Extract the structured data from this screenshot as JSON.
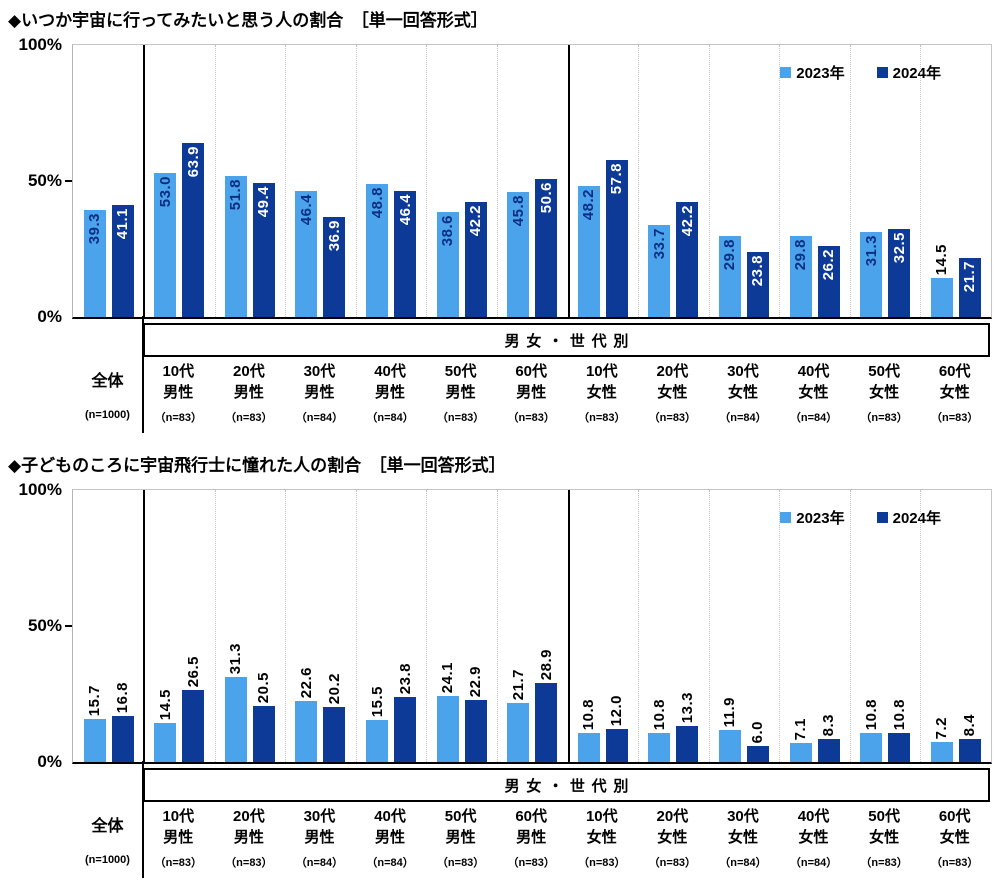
{
  "colors": {
    "bar_2023": "#4BA3EC",
    "bar_2024": "#0D3A96",
    "label_on_light_bar": "#0A2F82",
    "label_on_dark_bar": "#FFFFFF",
    "label_outside": "#000000"
  },
  "chart_data": [
    {
      "type": "bar",
      "title": "◆いつか宇宙に行ってみたいと思う人の割合　［単一回答形式］",
      "y_ticks": [
        "100%",
        "50%",
        "0%"
      ],
      "ylim": [
        0,
        100
      ],
      "legend": [
        "2023年",
        "2024年"
      ],
      "legend_position": "top-right",
      "grid": "vertical-dotted-group-separators",
      "group_box_label": "男女・世代別",
      "value_label_placement": "inside-end",
      "categories": [
        "全体",
        "10代\n男性",
        "20代\n男性",
        "30代\n男性",
        "40代\n男性",
        "50代\n男性",
        "60代\n男性",
        "10代\n女性",
        "20代\n女性",
        "30代\n女性",
        "40代\n女性",
        "50代\n女性",
        "60代\n女性"
      ],
      "n_labels": [
        "(n=1000)",
        "（n=83）",
        "（n=83）",
        "（n=84）",
        "（n=84）",
        "（n=83）",
        "（n=83）",
        "（n=83）",
        "（n=83）",
        "（n=84）",
        "（n=84）",
        "（n=83）",
        "（n=83）"
      ],
      "series": [
        {
          "name": "2023年",
          "values": [
            39.3,
            53.0,
            51.8,
            46.4,
            48.8,
            38.6,
            45.8,
            48.2,
            33.7,
            29.8,
            29.8,
            31.3,
            14.5
          ]
        },
        {
          "name": "2024年",
          "values": [
            41.1,
            63.9,
            49.4,
            36.9,
            46.4,
            42.2,
            50.6,
            57.8,
            42.2,
            23.8,
            26.2,
            32.5,
            21.7
          ]
        }
      ]
    },
    {
      "type": "bar",
      "title": "◆子どものころに宇宙飛行士に憧れた人の割合　［単一回答形式］",
      "y_ticks": [
        "100%",
        "50%",
        "0%"
      ],
      "ylim": [
        0,
        100
      ],
      "legend": [
        "2023年",
        "2024年"
      ],
      "legend_position": "top-right",
      "grid": "vertical-dotted-group-separators",
      "group_box_label": "男女・世代別",
      "value_label_placement": "outside-end",
      "categories": [
        "全体",
        "10代\n男性",
        "20代\n男性",
        "30代\n男性",
        "40代\n男性",
        "50代\n男性",
        "60代\n男性",
        "10代\n女性",
        "20代\n女性",
        "30代\n女性",
        "40代\n女性",
        "50代\n女性",
        "60代\n女性"
      ],
      "n_labels": [
        "(n=1000)",
        "（n=83）",
        "（n=83）",
        "（n=84）",
        "（n=84）",
        "（n=83）",
        "（n=83）",
        "（n=83）",
        "（n=83）",
        "（n=84）",
        "（n=84）",
        "（n=83）",
        "（n=83）"
      ],
      "series": [
        {
          "name": "2023年",
          "values": [
            15.7,
            14.5,
            31.3,
            22.6,
            15.5,
            24.1,
            21.7,
            10.8,
            10.8,
            11.9,
            7.1,
            10.8,
            7.2
          ]
        },
        {
          "name": "2024年",
          "values": [
            16.8,
            26.5,
            20.5,
            20.2,
            23.8,
            22.9,
            28.9,
            12.0,
            13.3,
            6.0,
            8.3,
            10.8,
            8.4
          ]
        }
      ]
    }
  ]
}
